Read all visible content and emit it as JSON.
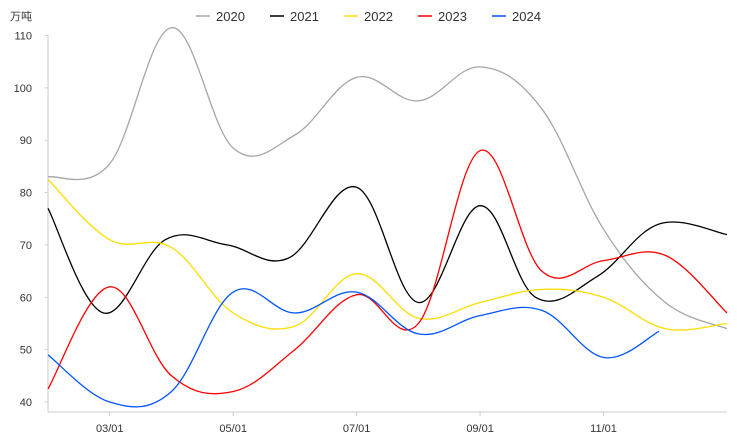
{
  "chart_data": {
    "type": "line",
    "unit_label": "万吨",
    "ylim": [
      40,
      110
    ],
    "yticks": [
      40,
      50,
      60,
      70,
      80,
      90,
      100,
      110
    ],
    "x_months": [
      2,
      3,
      4,
      5,
      6,
      7,
      8,
      9,
      10,
      11,
      12,
      13
    ],
    "x_range": [
      2,
      13.0
    ],
    "xtick_labels": [
      {
        "x": 3,
        "label": "03/01"
      },
      {
        "x": 5,
        "label": "05/01"
      },
      {
        "x": 7,
        "label": "07/01"
      },
      {
        "x": 9,
        "label": "09/01"
      },
      {
        "x": 11,
        "label": "11/01"
      }
    ],
    "legend_position": "top-center",
    "grid": false,
    "series": [
      {
        "name": "2020",
        "color": "#a6a6a6",
        "points": [
          [
            2,
            83
          ],
          [
            3,
            85.5
          ],
          [
            4,
            111.5
          ],
          [
            5,
            88.5
          ],
          [
            6,
            91
          ],
          [
            7,
            102
          ],
          [
            8,
            97.5
          ],
          [
            9,
            104
          ],
          [
            10,
            96
          ],
          [
            11,
            73
          ],
          [
            12,
            59
          ],
          [
            13,
            54
          ]
        ]
      },
      {
        "name": "2021",
        "color": "#000000",
        "points": [
          [
            2,
            77
          ],
          [
            2.9,
            57
          ],
          [
            3.9,
            71
          ],
          [
            4.9,
            70
          ],
          [
            5.9,
            67.5
          ],
          [
            7,
            81
          ],
          [
            8,
            59
          ],
          [
            9,
            77.5
          ],
          [
            9.9,
            60
          ],
          [
            10.9,
            64
          ],
          [
            11.9,
            74
          ],
          [
            13,
            72
          ]
        ]
      },
      {
        "name": "2022",
        "color": "#ffdd00",
        "points": [
          [
            2,
            82.5
          ],
          [
            3,
            71
          ],
          [
            4,
            69.5
          ],
          [
            5,
            57
          ],
          [
            6,
            54.5
          ],
          [
            7,
            64.5
          ],
          [
            8,
            56
          ],
          [
            9,
            59
          ],
          [
            10,
            61.5
          ],
          [
            11,
            60
          ],
          [
            12,
            54
          ],
          [
            13,
            55
          ]
        ]
      },
      {
        "name": "2023",
        "color": "#ff0000",
        "points": [
          [
            2,
            42.5
          ],
          [
            3,
            62
          ],
          [
            4,
            45
          ],
          [
            5,
            42
          ],
          [
            6,
            50
          ],
          [
            7,
            60.5
          ],
          [
            8,
            55
          ],
          [
            9,
            88
          ],
          [
            10,
            65
          ],
          [
            11,
            67
          ],
          [
            12,
            68
          ],
          [
            13,
            57
          ]
        ]
      },
      {
        "name": "2024",
        "color": "#0055ff",
        "points": [
          [
            2,
            49
          ],
          [
            3,
            40
          ],
          [
            4,
            42
          ],
          [
            5,
            61
          ],
          [
            6,
            57
          ],
          [
            7,
            61
          ],
          [
            8,
            53
          ],
          [
            9,
            56.5
          ],
          [
            10,
            57.5
          ],
          [
            11,
            48.5
          ],
          [
            11.9,
            53.5
          ]
        ]
      }
    ]
  }
}
